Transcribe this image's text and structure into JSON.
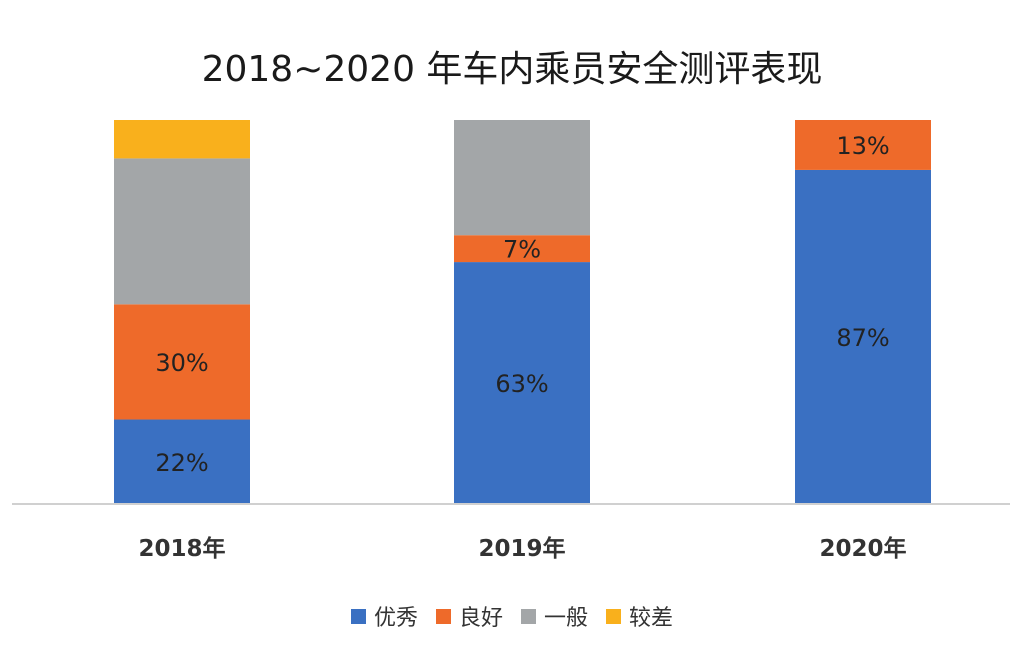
{
  "chart_data": {
    "type": "bar",
    "stacked": true,
    "percent": true,
    "title": "2018~2020 年车内乘员安全测评表现",
    "categories": [
      "2018年",
      "2019年",
      "2020年"
    ],
    "ylim": [
      0,
      100
    ],
    "grid": false,
    "legend_position": "bottom",
    "series": [
      {
        "name": "优秀",
        "color": "#3A70C2",
        "values": [
          22,
          63,
          87
        ],
        "labels": [
          "22%",
          "63%",
          "87%"
        ]
      },
      {
        "name": "良好",
        "color": "#EE6A2A",
        "values": [
          30,
          7,
          13
        ],
        "labels": [
          "30%",
          "7%",
          "13%"
        ]
      },
      {
        "name": "一般",
        "color": "#A3A6A8",
        "values": [
          38,
          30,
          0
        ],
        "labels": [
          "",
          "",
          ""
        ]
      },
      {
        "name": "较差",
        "color": "#F9B01C",
        "values": [
          10,
          0,
          0
        ],
        "labels": [
          "",
          "",
          ""
        ]
      }
    ]
  }
}
